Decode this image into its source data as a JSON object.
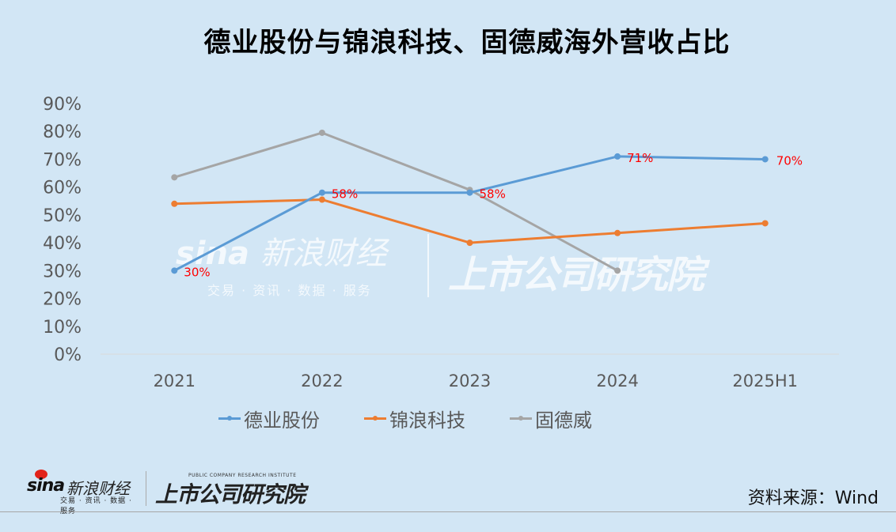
{
  "title": "德业股份与锦浪科技、固德威海外营收占比",
  "chart_data": {
    "type": "line",
    "title": "德业股份与锦浪科技、固德威海外营收占比",
    "xlabel": "",
    "ylabel": "",
    "categories": [
      "2021",
      "2022",
      "2023",
      "2024",
      "2025H1"
    ],
    "y_ticks": [
      "0%",
      "10%",
      "20%",
      "30%",
      "40%",
      "50%",
      "60%",
      "70%",
      "80%",
      "90%"
    ],
    "ylim": [
      0,
      90
    ],
    "grid": false,
    "legend_position": "bottom",
    "series": [
      {
        "name": "德业股份",
        "color": "#5b9bd5",
        "values": [
          30,
          58,
          58,
          71,
          70
        ],
        "data_labels": [
          "30%",
          "58%",
          "58%",
          "71%",
          "70%"
        ]
      },
      {
        "name": "锦浪科技",
        "color": "#ed7d31",
        "values": [
          54,
          55.5,
          40,
          43.5,
          47
        ]
      },
      {
        "name": "固德威",
        "color": "#a5a5a5",
        "values": [
          63.5,
          79.5,
          59,
          30,
          null
        ]
      }
    ],
    "data_label_color": "#ff0000"
  },
  "legend": [
    {
      "label": "德业股份",
      "color": "#5b9bd5"
    },
    {
      "label": "锦浪科技",
      "color": "#ed7d31"
    },
    {
      "label": "固德威",
      "color": "#a5a5a5"
    }
  ],
  "watermark": {
    "sina_cn": "新浪财经",
    "sina_sub": "交易 · 资讯 · 数据 · 服务",
    "institute_cn": "上市公司研究院"
  },
  "footer": {
    "sina_word": "sina",
    "sina_cn": "新浪财经",
    "sina_sub": "交易 · 资讯 · 数据 · 服务",
    "institute_en": "PUBLIC COMPANY RESEARCH INSTITUTE",
    "institute_cn": "上市公司研究院",
    "source": "资料来源：Wind"
  }
}
